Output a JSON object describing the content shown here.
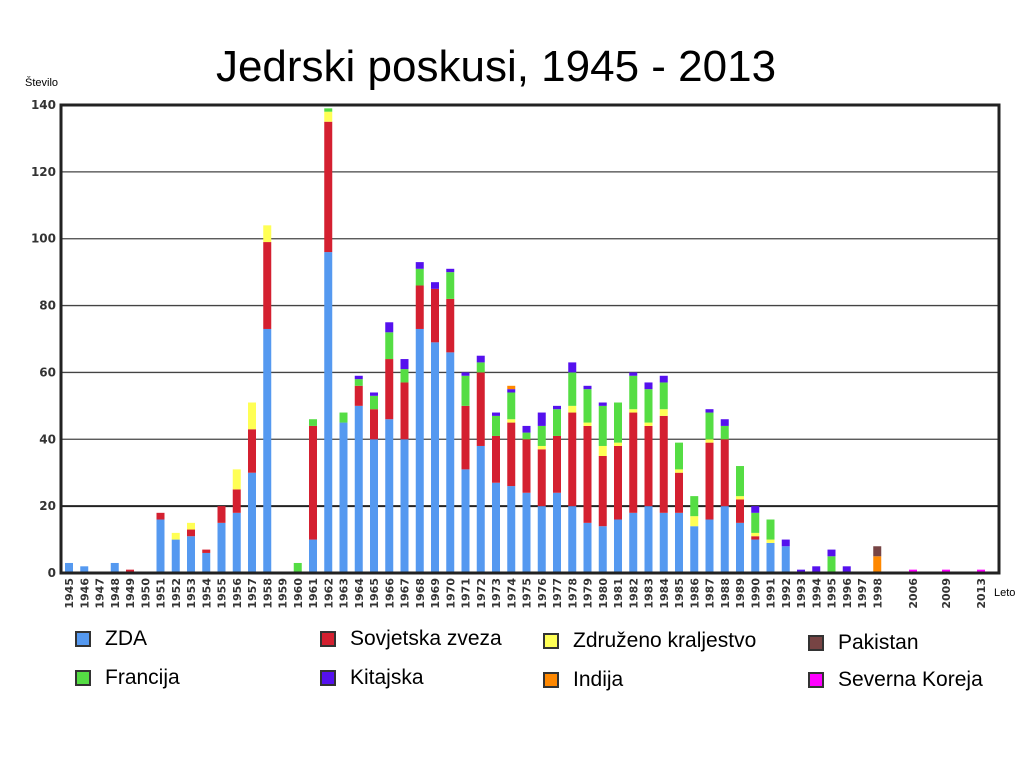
{
  "chart_data": {
    "type": "bar",
    "stacked": true,
    "title": "Jedrski poskusi, 1945 - 2013",
    "ylabel": "Število",
    "xlabel": "Leto",
    "ylim": [
      0,
      140
    ],
    "yticks": [
      0,
      20,
      40,
      60,
      80,
      100,
      120,
      140
    ],
    "grid": true,
    "legend_position": "bottom",
    "categories": [
      "1945",
      "1946",
      "1947",
      "1948",
      "1949",
      "1950",
      "1951",
      "1952",
      "1953",
      "1954",
      "1955",
      "1956",
      "1957",
      "1958",
      "1959",
      "1960",
      "1961",
      "1962",
      "1963",
      "1964",
      "1965",
      "1966",
      "1967",
      "1968",
      "1969",
      "1970",
      "1971",
      "1972",
      "1973",
      "1974",
      "1975",
      "1976",
      "1977",
      "1978",
      "1979",
      "1980",
      "1981",
      "1982",
      "1983",
      "1984",
      "1985",
      "1986",
      "1987",
      "1988",
      "1989",
      "1990",
      "1991",
      "1992",
      "1993",
      "1994",
      "1995",
      "1996",
      "1997",
      "1998",
      "2006",
      "2009",
      "2013"
    ],
    "series": [
      {
        "name": "ZDA",
        "color": "#5599f0",
        "values": [
          3,
          2,
          0,
          3,
          0,
          0,
          16,
          10,
          11,
          6,
          15,
          18,
          30,
          73,
          0,
          0,
          10,
          96,
          45,
          50,
          40,
          46,
          40,
          73,
          69,
          66,
          31,
          38,
          27,
          26,
          24,
          20,
          24,
          20,
          15,
          14,
          16,
          18,
          20,
          18,
          18,
          14,
          16,
          20,
          15,
          10,
          9,
          8,
          0,
          0,
          0,
          0,
          0,
          0,
          0,
          0,
          0
        ]
      },
      {
        "name": "Sovjetska zveza",
        "color": "#d42030",
        "values": [
          0,
          0,
          0,
          0,
          1,
          0,
          2,
          0,
          2,
          1,
          5,
          7,
          13,
          26,
          0,
          0,
          34,
          39,
          0,
          6,
          9,
          18,
          17,
          13,
          16,
          16,
          19,
          22,
          14,
          19,
          16,
          17,
          17,
          28,
          29,
          21,
          22,
          30,
          24,
          29,
          12,
          0,
          23,
          20,
          7,
          1,
          0,
          0,
          0,
          0,
          0,
          0,
          0,
          0,
          0,
          0,
          0
        ]
      },
      {
        "name": "Združeno kraljestvo",
        "color": "#ffff55",
        "values": [
          0,
          0,
          0,
          0,
          0,
          0,
          0,
          2,
          2,
          0,
          0,
          6,
          8,
          5,
          0,
          0,
          0,
          3,
          0,
          0,
          0,
          0,
          0,
          0,
          0,
          0,
          0,
          0,
          0,
          1,
          0,
          1,
          0,
          2,
          1,
          3,
          1,
          1,
          1,
          2,
          1,
          3,
          1,
          0,
          1,
          1,
          1,
          0,
          0,
          0,
          0,
          0,
          0,
          0,
          0,
          0,
          0
        ]
      },
      {
        "name": "Francija",
        "color": "#55dd44",
        "values": [
          0,
          0,
          0,
          0,
          0,
          0,
          0,
          0,
          0,
          0,
          0,
          0,
          0,
          0,
          0,
          3,
          2,
          1,
          3,
          2,
          4,
          8,
          4,
          5,
          0,
          8,
          9,
          3,
          6,
          8,
          2,
          6,
          8,
          10,
          10,
          12,
          12,
          10,
          10,
          8,
          8,
          6,
          8,
          4,
          9,
          6,
          6,
          0,
          0,
          0,
          5,
          0,
          0,
          0,
          0,
          0,
          0
        ]
      },
      {
        "name": "Kitajska",
        "color": "#5511ee",
        "values": [
          0,
          0,
          0,
          0,
          0,
          0,
          0,
          0,
          0,
          0,
          0,
          0,
          0,
          0,
          0,
          0,
          0,
          0,
          0,
          1,
          1,
          3,
          3,
          2,
          2,
          1,
          1,
          2,
          1,
          1,
          2,
          4,
          1,
          3,
          1,
          1,
          0,
          1,
          2,
          2,
          0,
          0,
          1,
          2,
          0,
          2,
          0,
          2,
          1,
          2,
          2,
          2,
          0,
          0,
          0,
          0,
          0
        ]
      },
      {
        "name": "Indija",
        "color": "#ff8800",
        "values": [
          0,
          0,
          0,
          0,
          0,
          0,
          0,
          0,
          0,
          0,
          0,
          0,
          0,
          0,
          0,
          0,
          0,
          0,
          0,
          0,
          0,
          0,
          0,
          0,
          0,
          0,
          0,
          0,
          0,
          1,
          0,
          0,
          0,
          0,
          0,
          0,
          0,
          0,
          0,
          0,
          0,
          0,
          0,
          0,
          0,
          0,
          0,
          0,
          0,
          0,
          0,
          0,
          0,
          5,
          0,
          0,
          0
        ]
      },
      {
        "name": "Pakistan",
        "color": "#774444",
        "values": [
          0,
          0,
          0,
          0,
          0,
          0,
          0,
          0,
          0,
          0,
          0,
          0,
          0,
          0,
          0,
          0,
          0,
          0,
          0,
          0,
          0,
          0,
          0,
          0,
          0,
          0,
          0,
          0,
          0,
          0,
          0,
          0,
          0,
          0,
          0,
          0,
          0,
          0,
          0,
          0,
          0,
          0,
          0,
          0,
          0,
          0,
          0,
          0,
          0,
          0,
          0,
          0,
          0,
          3,
          0,
          0,
          0
        ]
      },
      {
        "name": "Severna Koreja",
        "color": "#ff00ff",
        "values": [
          0,
          0,
          0,
          0,
          0,
          0,
          0,
          0,
          0,
          0,
          0,
          0,
          0,
          0,
          0,
          0,
          0,
          0,
          0,
          0,
          0,
          0,
          0,
          0,
          0,
          0,
          0,
          0,
          0,
          0,
          0,
          0,
          0,
          0,
          0,
          0,
          0,
          0,
          0,
          0,
          0,
          0,
          0,
          0,
          0,
          0,
          0,
          0,
          0,
          0,
          0,
          0,
          0,
          0,
          1,
          1,
          1
        ]
      }
    ]
  }
}
